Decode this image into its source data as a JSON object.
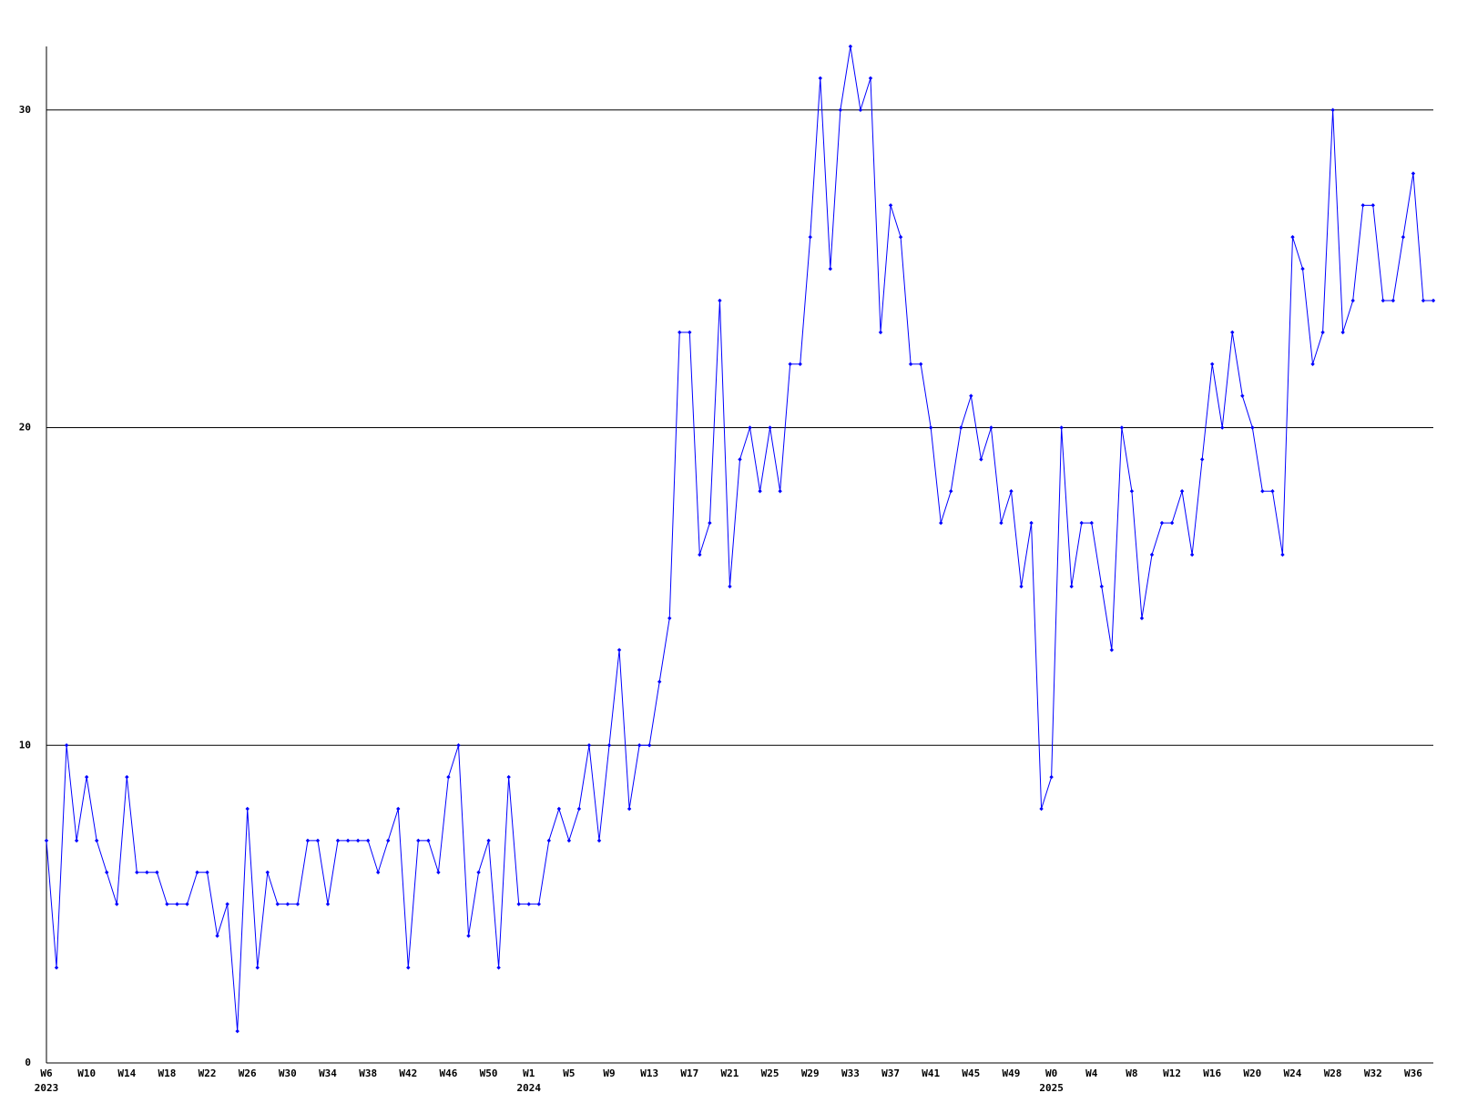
{
  "chart_data": {
    "type": "line",
    "categories": [
      "W6",
      null,
      null,
      null,
      "W10",
      null,
      null,
      null,
      "W14",
      null,
      null,
      null,
      "W18",
      null,
      null,
      null,
      "W22",
      null,
      null,
      null,
      "W26",
      null,
      null,
      null,
      "W30",
      null,
      null,
      null,
      "W34",
      null,
      null,
      null,
      "W38",
      null,
      null,
      null,
      "W42",
      null,
      null,
      null,
      "W46",
      null,
      null,
      null,
      "W50",
      null,
      null,
      null,
      "W1",
      null,
      null,
      null,
      "W5",
      null,
      null,
      null,
      "W9",
      null,
      null,
      null,
      "W13",
      null,
      null,
      null,
      "W17",
      null,
      null,
      null,
      "W21",
      null,
      null,
      null,
      "W25",
      null,
      null,
      null,
      "W29",
      null,
      null,
      null,
      "W33",
      null,
      null,
      null,
      "W37",
      null,
      null,
      null,
      "W41",
      null,
      null,
      null,
      "W45",
      null,
      null,
      null,
      "W49",
      null,
      null,
      null,
      "W0",
      null,
      null,
      null,
      "W4",
      null,
      null,
      null,
      "W8",
      null,
      null,
      null,
      "W12",
      null,
      null,
      null,
      "W16",
      null,
      null,
      null,
      "W20",
      null,
      null,
      null,
      "W24",
      null,
      null,
      null,
      "W28",
      null,
      null,
      null,
      "W32",
      null,
      null,
      null,
      "W36",
      null,
      null
    ],
    "years": [
      "2023",
      null,
      null,
      null,
      null,
      null,
      null,
      null,
      null,
      null,
      null,
      null,
      null,
      null,
      null,
      null,
      null,
      null,
      null,
      null,
      null,
      null,
      null,
      null,
      null,
      null,
      null,
      null,
      null,
      null,
      null,
      null,
      null,
      null,
      null,
      null,
      null,
      null,
      null,
      null,
      null,
      null,
      null,
      null,
      null,
      null,
      null,
      null,
      "2024",
      null,
      null,
      null,
      null,
      null,
      null,
      null,
      null,
      null,
      null,
      null,
      null,
      null,
      null,
      null,
      null,
      null,
      null,
      null,
      null,
      null,
      null,
      null,
      null,
      null,
      null,
      null,
      null,
      null,
      null,
      null,
      null,
      null,
      null,
      null,
      null,
      null,
      null,
      null,
      null,
      null,
      null,
      null,
      null,
      null,
      null,
      null,
      null,
      null,
      null,
      null,
      "2025",
      null,
      null,
      null,
      null,
      null,
      null,
      null,
      null,
      null,
      null,
      null,
      null,
      null,
      null,
      null,
      null,
      null,
      null,
      null,
      null,
      null,
      null,
      null,
      null,
      null,
      null,
      null,
      null,
      null,
      null,
      null,
      null,
      null,
      null,
      null,
      null,
      null,
      null
    ],
    "series": [
      {
        "color": "#0000ff",
        "values": [
          7,
          3,
          10,
          7,
          9,
          7,
          6,
          5,
          9,
          6,
          6,
          6,
          5,
          5,
          5,
          6,
          6,
          4,
          5,
          1,
          8,
          3,
          6,
          5,
          5,
          5,
          7,
          7,
          5,
          7,
          7,
          7,
          7,
          6,
          7,
          8,
          3,
          7,
          7,
          6,
          9,
          10,
          4,
          6,
          7,
          3,
          9,
          5,
          5,
          5,
          7,
          8,
          7,
          8,
          10,
          7,
          10,
          13,
          8,
          10,
          10,
          12,
          14,
          23,
          23,
          16,
          17,
          24,
          15,
          19,
          20,
          18,
          20,
          18,
          22,
          22,
          26,
          31,
          25,
          30,
          32,
          30,
          31,
          23,
          27,
          26,
          22,
          22,
          20,
          17,
          18,
          20,
          21,
          19,
          20,
          17,
          18,
          15,
          17,
          8,
          9,
          20,
          15,
          17,
          17,
          15,
          13,
          20,
          18,
          14,
          16,
          17,
          17,
          18,
          16,
          19,
          22,
          20,
          23,
          21,
          20,
          18,
          18,
          16,
          26,
          25,
          22,
          23,
          30,
          23,
          24,
          27,
          27,
          24,
          24,
          26,
          28,
          24,
          24
        ]
      }
    ],
    "ylim": [
      0,
      32
    ],
    "yticks": [
      0,
      10,
      20,
      30
    ],
    "grid": true,
    "grid_color": "#000000"
  }
}
